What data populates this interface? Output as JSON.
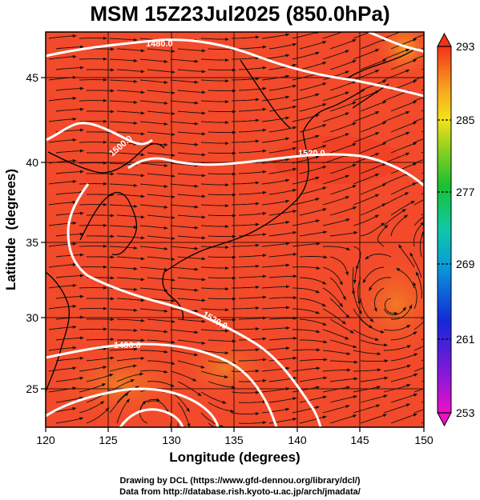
{
  "title": "MSM 15Z23Jul2025 (850.0hPa)",
  "x_axis": {
    "label": "Longitude (degrees)",
    "ticks": [
      "120",
      "125",
      "130",
      "135",
      "140",
      "145",
      "150"
    ]
  },
  "y_axis": {
    "label": "Latitude  (degrees)",
    "ticks": [
      "25",
      "30",
      "35",
      "40",
      "45"
    ]
  },
  "colorbar": {
    "ticks": [
      "253",
      "261",
      "269",
      "277",
      "285",
      "293"
    ]
  },
  "contour_labels": [
    "1480.0",
    "1500.0",
    "1520.0",
    "1520.0",
    "1480.0"
  ],
  "credits": {
    "line1": "Drawing by DCL (https://www.gfd-dennou.org/library/dcl/)",
    "line2": "Data from http://database.rish.kyoto-u.ac.jp/arch/jmadata/"
  },
  "map": {
    "lon_range": [
      120,
      150
    ],
    "lat_range": [
      22.5,
      48
    ],
    "field_color": "#f24a2a",
    "contour_color": "#ffffff",
    "coast_color": "#000000"
  },
  "colors": {
    "warm": "#f03a22",
    "hot": "#f26a20",
    "orange": "#f79a1e"
  }
}
